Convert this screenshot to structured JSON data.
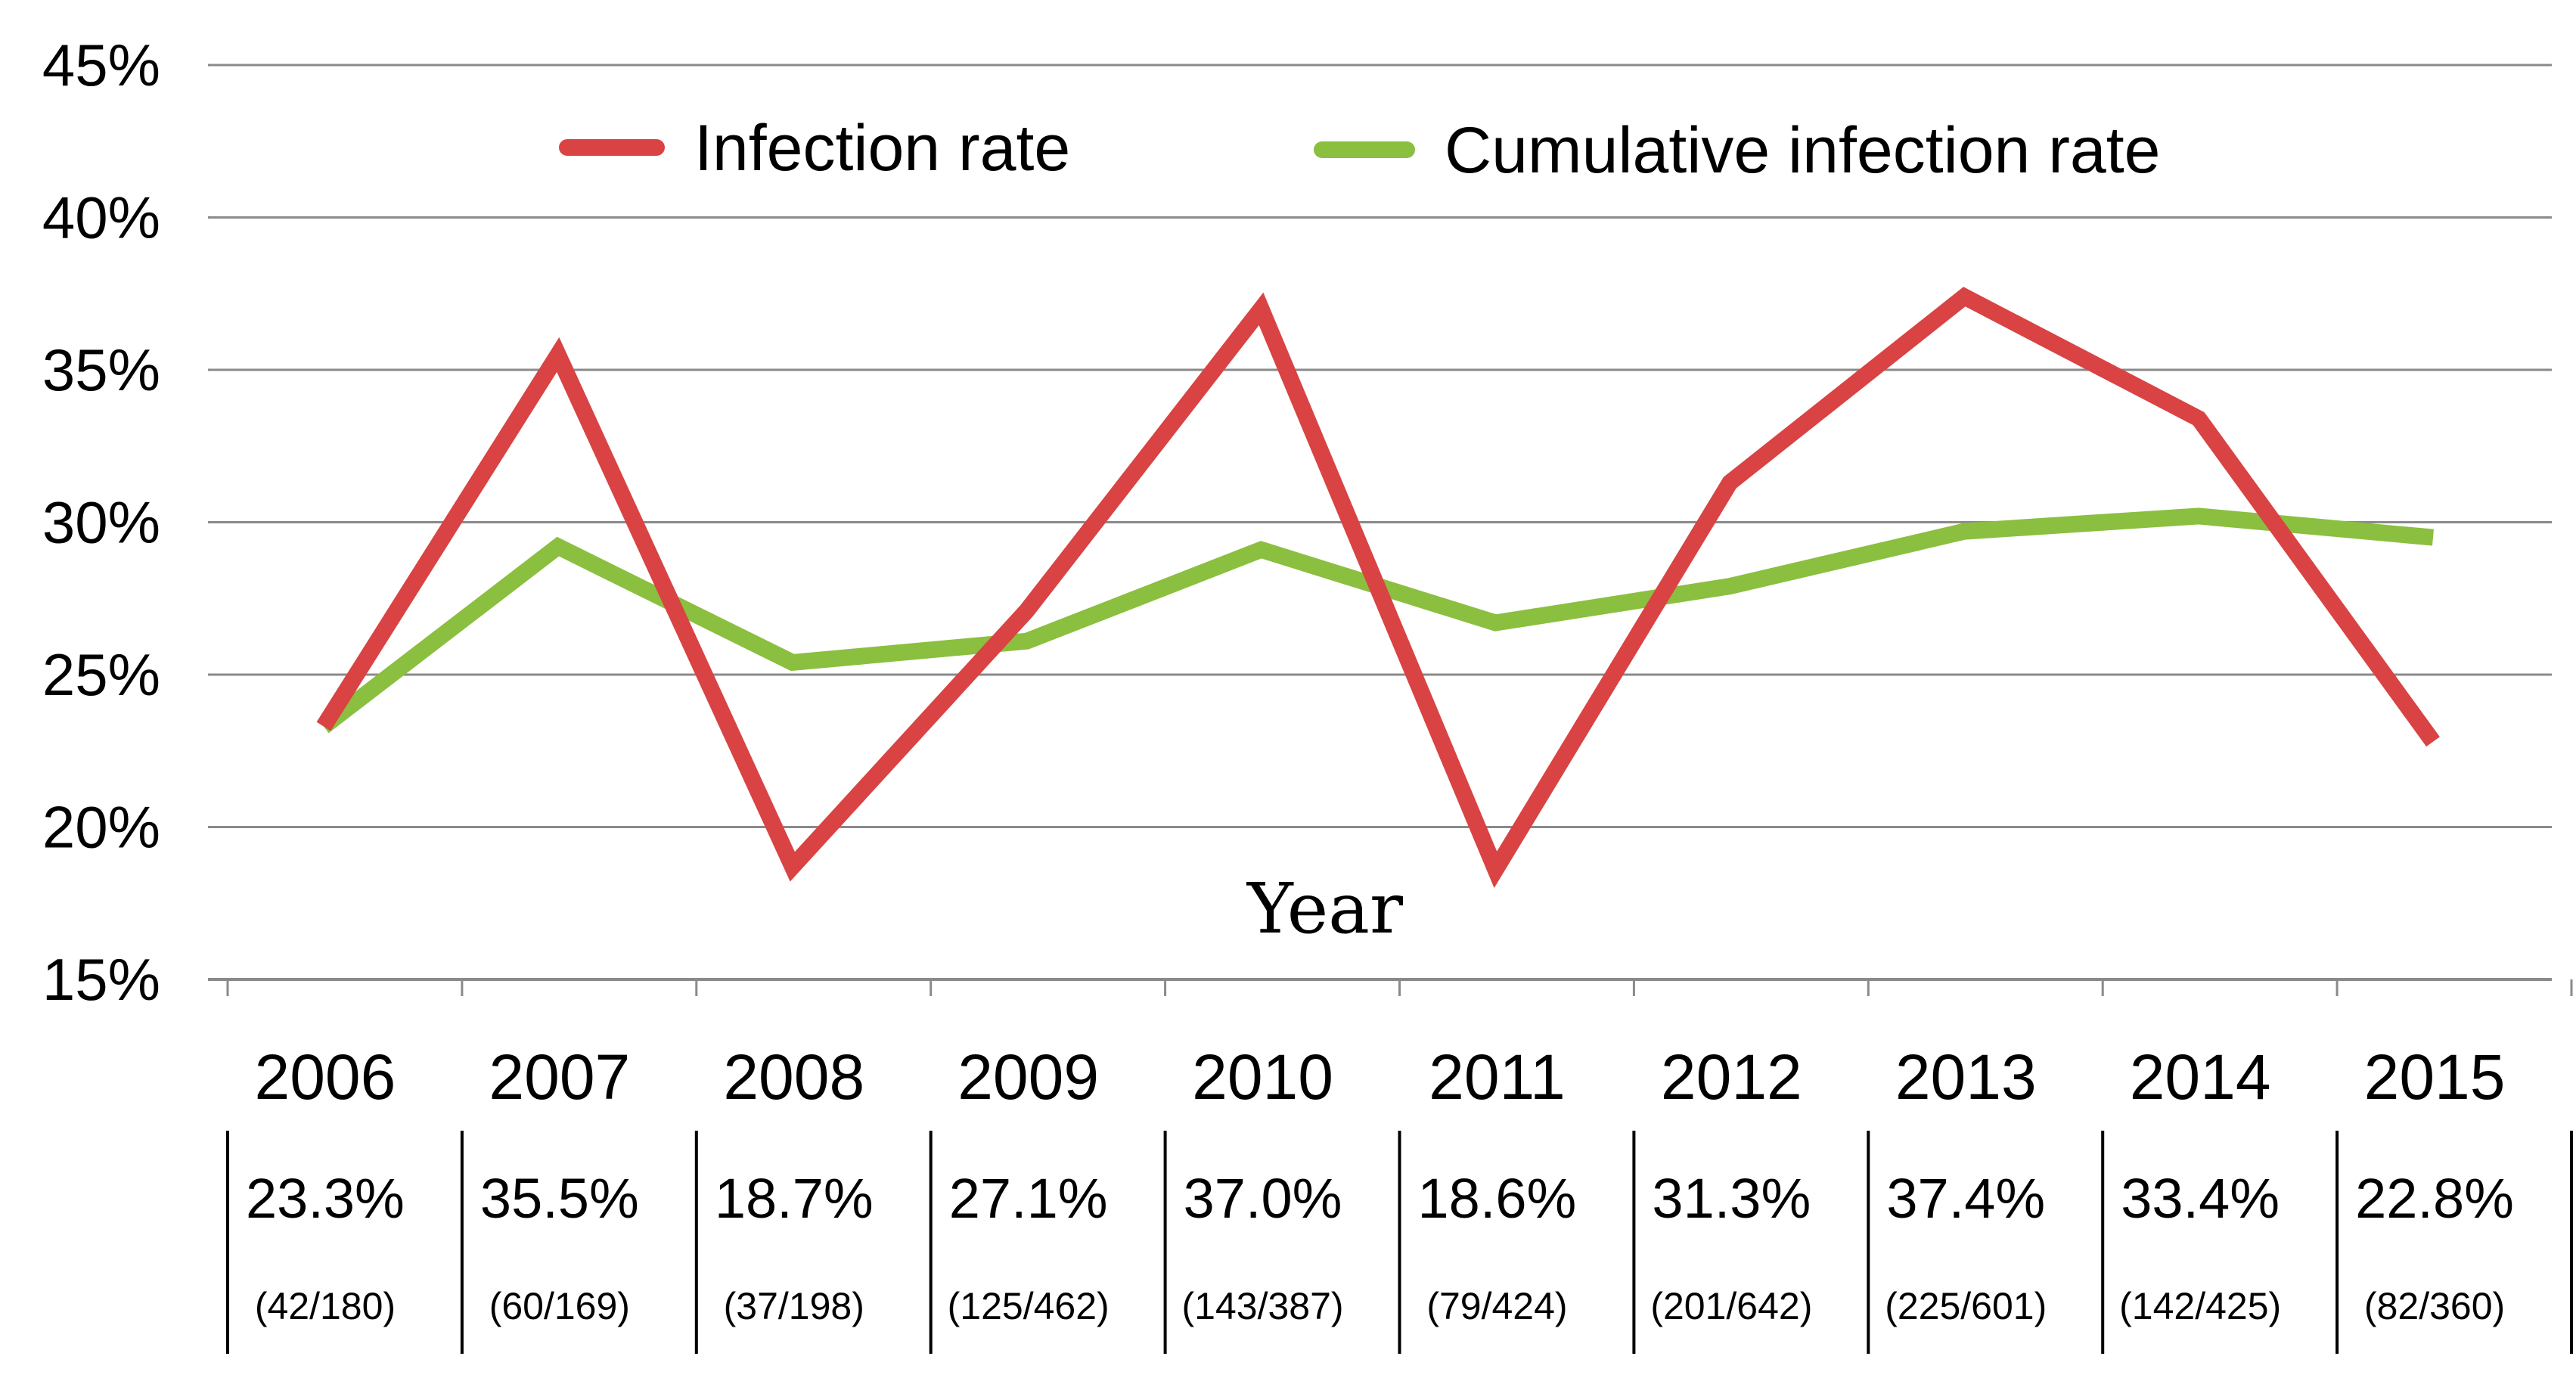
{
  "chart_data": {
    "type": "line",
    "title": "",
    "xlabel": "Year",
    "ylabel": "",
    "ylim": [
      15,
      45
    ],
    "ytick_step": 5,
    "ytick_suffix": "%",
    "grid": true,
    "legend_position": "top",
    "categories": [
      "2006",
      "2007",
      "2008",
      "2009",
      "2010",
      "2011",
      "2012",
      "2013",
      "2014",
      "2015"
    ],
    "series": [
      {
        "name": "Infection rate",
        "color": "#d94343",
        "values": [
          23.3,
          35.5,
          18.7,
          27.1,
          37.0,
          18.6,
          31.3,
          37.4,
          33.4,
          22.8
        ]
      },
      {
        "name": "Cumulative infection rate",
        "color": "#8bbf3f",
        "values": [
          23.3,
          29.2,
          25.4,
          26.1,
          29.1,
          26.7,
          27.9,
          29.7,
          30.2,
          29.5
        ]
      }
    ],
    "table": {
      "rates": [
        "23.3%",
        "35.5%",
        "18.7%",
        "27.1%",
        "37.0%",
        "18.6%",
        "31.3%",
        "37.4%",
        "33.4%",
        "22.8%"
      ],
      "counts": [
        "(42/180)",
        "(60/169)",
        "(37/198)",
        "(125/462)",
        "(143/387)",
        "(79/424)",
        "(201/642)",
        "(225/601)",
        "(142/425)",
        "(82/360)"
      ]
    }
  }
}
